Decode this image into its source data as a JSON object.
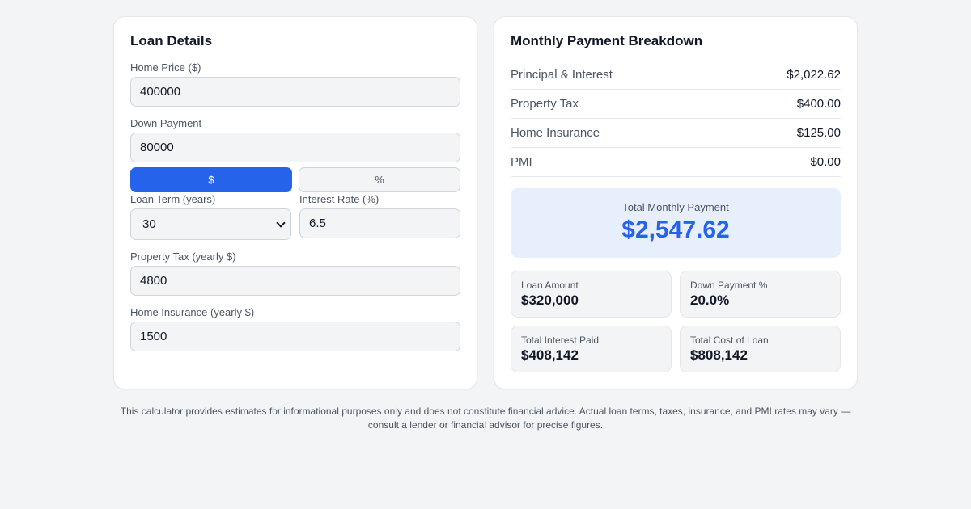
{
  "loan_details": {
    "title": "Loan Details",
    "home_price": {
      "label": "Home Price ($)",
      "value": "400000"
    },
    "down_payment": {
      "label": "Down Payment",
      "value": "80000"
    },
    "down_payment_mode": {
      "dollar_label": "$",
      "percent_label": "%",
      "selected": "$"
    },
    "loan_term": {
      "label": "Loan Term (years)",
      "value": "30",
      "options": [
        "30"
      ]
    },
    "interest_rate": {
      "label": "Interest Rate (%)",
      "value": "6.5"
    },
    "property_tax": {
      "label": "Property Tax (yearly $)",
      "value": "4800"
    },
    "home_insurance": {
      "label": "Home Insurance (yearly $)",
      "value": "1500"
    }
  },
  "breakdown": {
    "title": "Monthly Payment Breakdown",
    "rows": [
      {
        "name": "Principal & Interest",
        "value": "$2,022.62"
      },
      {
        "name": "Property Tax",
        "value": "$400.00"
      },
      {
        "name": "Home Insurance",
        "value": "$125.00"
      },
      {
        "name": "PMI",
        "value": "$0.00"
      }
    ],
    "total": {
      "label": "Total Monthly Payment",
      "value": "$2,547.62"
    },
    "stats": [
      {
        "label": "Loan Amount",
        "value": "$320,000"
      },
      {
        "label": "Down Payment %",
        "value": "20.0%"
      },
      {
        "label": "Total Interest Paid",
        "value": "$408,142"
      },
      {
        "label": "Total Cost of Loan",
        "value": "$808,142"
      }
    ]
  },
  "disclaimer": "This calculator provides estimates for informational purposes only and does not constitute financial advice. Actual loan terms, taxes, insurance, and PMI rates may vary — consult a lender or financial advisor for precise figures.",
  "colors": {
    "accent": "#2563eb",
    "total_bg": "#e8effc",
    "page_bg": "#f3f4f6"
  }
}
